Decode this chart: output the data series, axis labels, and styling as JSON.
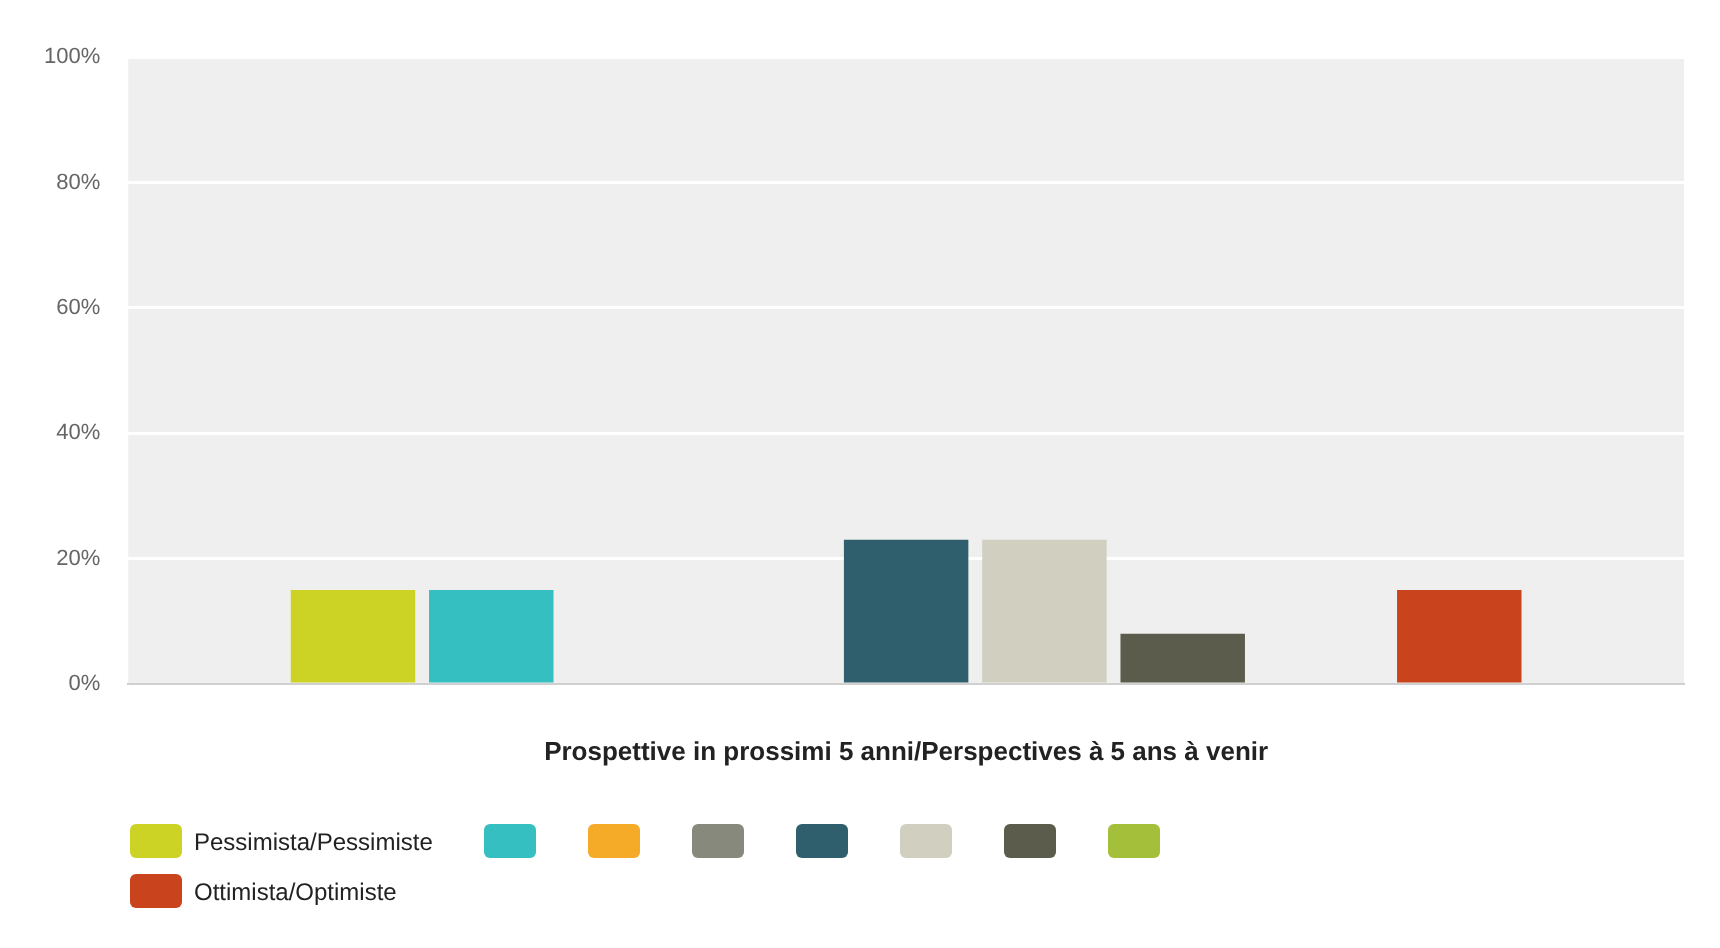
{
  "chart_data": {
    "type": "bar",
    "xlabel": "Prospettive in prossimi 5 anni/Perspectives à 5 ans à venir",
    "categories": [
      null
    ],
    "series": [
      {
        "name": "Pessimista/Pessimiste",
        "color": "#cdd325",
        "values": [
          15
        ]
      },
      {
        "color": "#35bfc0",
        "values": [
          15
        ]
      },
      {
        "color": "#f6ab28",
        "values": [
          0
        ]
      },
      {
        "color": "#87897d",
        "values": [
          0
        ]
      },
      {
        "color": "#2f5f6d",
        "values": [
          23
        ]
      },
      {
        "color": "#d0cfc0",
        "values": [
          23
        ]
      },
      {
        "color": "#5b5c4b",
        "values": [
          8
        ]
      },
      {
        "color": "#a4bf3a",
        "values": [
          0
        ]
      },
      {
        "name": "Ottimista/Optimiste",
        "color": "#c9441c",
        "values": [
          15
        ]
      }
    ],
    "ylim": [
      0,
      100
    ],
    "yticks": [
      {
        "value": 0,
        "label": "0%"
      },
      {
        "value": 20,
        "label": "20%"
      },
      {
        "value": 40,
        "label": "40%"
      },
      {
        "value": 60,
        "label": "60%"
      },
      {
        "value": 80,
        "label": "80%"
      },
      {
        "value": 100,
        "label": "100%"
      }
    ],
    "grid": "y",
    "legend": "bottom"
  }
}
